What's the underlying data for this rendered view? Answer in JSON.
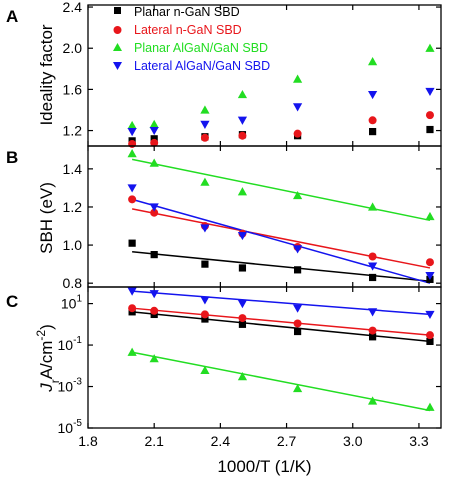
{
  "chart_data": [
    {
      "type": "scatter",
      "panel_label": "A",
      "ylabel": "Ideality factor",
      "xlim": [
        1.8,
        3.4
      ],
      "ylim": [
        1.05,
        2.42
      ],
      "yticks": [
        "1.2",
        "1.6",
        "2.0",
        "2.4"
      ],
      "ytick_values": [
        1.2,
        1.6,
        2.0,
        2.4
      ],
      "legend": {
        "placement": "top-left",
        "entries": [
          "Planar n-GaN SBD",
          "Lateral n-GaN SBD",
          "Planar AlGaN/GaN SBD",
          "Lateral AlGaN/GaN SBD"
        ]
      },
      "x": [
        2.0,
        2.1,
        2.33,
        2.5,
        2.75,
        3.09,
        3.35
      ],
      "series": [
        {
          "name": "Planar n-GaN SBD",
          "color": "#000000",
          "marker": "square",
          "values": [
            1.1,
            1.12,
            1.14,
            1.16,
            1.15,
            1.19,
            1.21
          ]
        },
        {
          "name": "Lateral n-GaN SBD",
          "color": "#e8161b",
          "marker": "circle",
          "values": [
            1.07,
            1.08,
            1.13,
            1.15,
            1.17,
            1.3,
            1.35
          ]
        },
        {
          "name": "Planar AlGaN/GaN SBD",
          "color": "#22dd22",
          "marker": "triangle-up",
          "values": [
            1.25,
            1.26,
            1.4,
            1.55,
            1.7,
            1.87,
            2.0
          ]
        },
        {
          "name": "Lateral AlGaN/GaN SBD",
          "color": "#1414ee",
          "marker": "triangle-down",
          "values": [
            1.19,
            1.2,
            1.26,
            1.3,
            1.43,
            1.55,
            1.58
          ]
        }
      ]
    },
    {
      "type": "scatter",
      "panel_label": "B",
      "ylabel": "SBH (eV)",
      "xlim": [
        1.8,
        3.4
      ],
      "ylim": [
        0.78,
        1.52
      ],
      "yticks": [
        "0.8",
        "1.0",
        "1.2",
        "1.4"
      ],
      "ytick_values": [
        0.8,
        1.0,
        1.2,
        1.4
      ],
      "x": [
        2.0,
        2.1,
        2.33,
        2.5,
        2.75,
        3.09,
        3.35
      ],
      "series": [
        {
          "name": "Planar n-GaN SBD",
          "color": "#000000",
          "marker": "square",
          "values": [
            1.01,
            0.95,
            0.9,
            0.88,
            0.87,
            0.83,
            0.82
          ],
          "fit": [
            0.965,
            0.81
          ]
        },
        {
          "name": "Lateral n-GaN SBD",
          "color": "#e8161b",
          "marker": "circle",
          "values": [
            1.24,
            1.17,
            1.1,
            1.06,
            0.99,
            0.94,
            0.91
          ],
          "fit": [
            1.19,
            0.88
          ]
        },
        {
          "name": "Planar AlGaN/GaN SBD",
          "color": "#22dd22",
          "marker": "triangle-up",
          "values": [
            1.48,
            1.43,
            1.33,
            1.28,
            1.26,
            1.2,
            1.15
          ],
          "fit": [
            1.45,
            1.13
          ]
        },
        {
          "name": "Lateral AlGaN/GaN SBD",
          "color": "#1414ee",
          "marker": "triangle-down",
          "values": [
            1.3,
            1.2,
            1.09,
            1.05,
            0.98,
            0.89,
            0.84
          ],
          "fit": [
            1.24,
            0.8
          ]
        }
      ]
    },
    {
      "type": "scatter",
      "panel_label": "C",
      "scale": "log",
      "ylabel_main": "J",
      "ylabel_sub": "r",
      "ylabel_rest": "A/cm",
      "ylabel_sup": "-2",
      "ylabel_close": ")",
      "xlabel": "1000/T (1/K)",
      "xlim": [
        1.8,
        3.4
      ],
      "xticks": [
        "1.8",
        "2.1",
        "2.4",
        "2.7",
        "3.0",
        "3.3"
      ],
      "xtick_values": [
        1.8,
        2.1,
        2.4,
        2.7,
        3.0,
        3.3
      ],
      "ylim_exp": [
        -5,
        1.8
      ],
      "ytick_base": [
        "10",
        "10",
        "10",
        "10"
      ],
      "ytick_exp": [
        "-5",
        "-3",
        "-1",
        "1"
      ],
      "ytick_values": [
        -5,
        -3,
        -1,
        1
      ],
      "x": [
        2.0,
        2.1,
        2.33,
        2.5,
        2.75,
        3.09,
        3.35
      ],
      "series": [
        {
          "name": "Planar n-GaN SBD",
          "color": "#000000",
          "marker": "square",
          "values": [
            4.0,
            3.0,
            1.8,
            1.0,
            0.45,
            0.25,
            0.15
          ],
          "fit": [
            4.0,
            0.15
          ]
        },
        {
          "name": "Lateral n-GaN SBD",
          "color": "#e8161b",
          "marker": "circle",
          "values": [
            6.0,
            4.5,
            3.0,
            2.0,
            1.1,
            0.5,
            0.3
          ],
          "fit": [
            6.0,
            0.3
          ]
        },
        {
          "name": "Planar AlGaN/GaN SBD",
          "color": "#22dd22",
          "marker": "triangle-up",
          "values": [
            0.045,
            0.022,
            0.006,
            0.003,
            0.0008,
            0.0002,
            0.0001
          ],
          "fit": [
            0.045,
            7e-05
          ]
        },
        {
          "name": "Lateral AlGaN/GaN SBD",
          "color": "#1414ee",
          "marker": "triangle-down",
          "values": [
            40.0,
            30.0,
            15.0,
            10.0,
            6.0,
            4.0,
            3.0
          ],
          "fit": [
            40.0,
            3.0
          ]
        }
      ]
    }
  ]
}
